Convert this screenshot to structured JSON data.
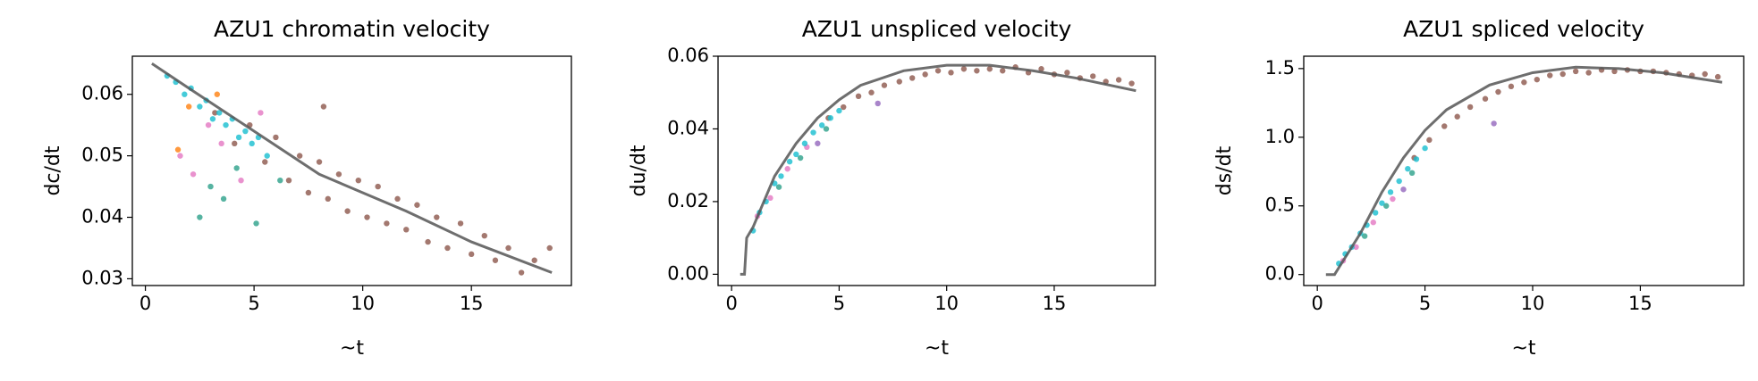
{
  "chart_data": [
    {
      "type": "scatter",
      "title": "AZU1 chromatin velocity",
      "xlabel": "~t",
      "ylabel": "dc/dt",
      "xlim": [
        -0.6,
        19.6
      ],
      "ylim": [
        0.0289,
        0.0662
      ],
      "xticks": [
        0,
        5,
        10,
        15
      ],
      "yticks": [
        0.03,
        0.04,
        0.05,
        0.06
      ],
      "series": [
        {
          "color": "#8c564b",
          "x": [
            3.2,
            4.1,
            4.8,
            5.5,
            6.0,
            6.6,
            7.1,
            7.5,
            8.0,
            8.2,
            8.4,
            8.9,
            9.3,
            9.8,
            10.2,
            10.7,
            11.1,
            11.6,
            12.0,
            12.5,
            13.0,
            13.4,
            13.9,
            14.5,
            15.0,
            15.6,
            16.1,
            16.7,
            17.3,
            17.9,
            18.6
          ],
          "y": [
            0.057,
            0.052,
            0.055,
            0.049,
            0.053,
            0.046,
            0.05,
            0.044,
            0.049,
            0.058,
            0.043,
            0.047,
            0.041,
            0.046,
            0.04,
            0.045,
            0.039,
            0.043,
            0.038,
            0.042,
            0.036,
            0.04,
            0.035,
            0.039,
            0.034,
            0.037,
            0.033,
            0.035,
            0.031,
            0.033,
            0.035
          ]
        },
        {
          "color": "#2ca089",
          "x": [
            2.5,
            3.0,
            3.6,
            4.2,
            5.1,
            6.2
          ],
          "y": [
            0.04,
            0.045,
            0.043,
            0.048,
            0.039,
            0.046
          ]
        },
        {
          "color": "#e377c2",
          "x": [
            1.6,
            2.2,
            2.9,
            3.5,
            4.4,
            5.3
          ],
          "y": [
            0.05,
            0.047,
            0.055,
            0.052,
            0.046,
            0.057
          ]
        },
        {
          "color": "#ff7f0e",
          "x": [
            1.5,
            2.0,
            3.3
          ],
          "y": [
            0.051,
            0.058,
            0.06
          ]
        },
        {
          "color": "#17becf",
          "x": [
            1.0,
            1.4,
            1.8,
            2.1,
            2.5,
            2.8,
            3.1,
            3.4,
            3.7,
            4.0,
            4.3,
            4.6,
            4.9,
            5.2,
            5.6
          ],
          "y": [
            0.063,
            0.062,
            0.06,
            0.061,
            0.058,
            0.059,
            0.056,
            0.057,
            0.055,
            0.056,
            0.053,
            0.054,
            0.052,
            0.053,
            0.05
          ]
        },
        {
          "type": "line",
          "color": "#555555",
          "x": [
            0.3,
            2,
            5,
            8,
            10,
            12,
            15,
            18.7
          ],
          "y": [
            0.065,
            0.061,
            0.054,
            0.047,
            0.044,
            0.041,
            0.036,
            0.031
          ]
        }
      ]
    },
    {
      "type": "scatter",
      "title": "AZU1 unspliced velocity",
      "xlabel": "~t",
      "ylabel": "du/dt",
      "xlim": [
        -0.63,
        19.7
      ],
      "ylim": [
        -0.0031,
        0.06
      ],
      "xticks": [
        0,
        5,
        10,
        15
      ],
      "yticks": [
        {
          "value": 0,
          "label": "0.00"
        },
        0.02,
        0.04,
        0.06
      ],
      "series": [
        {
          "color": "#8c564b",
          "x": [
            4.5,
            5.2,
            5.9,
            6.5,
            7.1,
            7.8,
            8.4,
            9.0,
            9.6,
            10.2,
            10.8,
            11.4,
            12.0,
            12.6,
            13.2,
            13.8,
            14.4,
            15.0,
            15.6,
            16.2,
            16.8,
            17.4,
            18.0,
            18.6
          ],
          "y": [
            0.043,
            0.046,
            0.049,
            0.05,
            0.052,
            0.053,
            0.054,
            0.055,
            0.056,
            0.0555,
            0.0565,
            0.056,
            0.0565,
            0.056,
            0.057,
            0.0555,
            0.0565,
            0.055,
            0.0555,
            0.054,
            0.0545,
            0.053,
            0.0535,
            0.0525
          ]
        },
        {
          "color": "#e377c2",
          "x": [
            1.2,
            1.8,
            2.6,
            3.5
          ],
          "y": [
            0.016,
            0.021,
            0.029,
            0.035
          ]
        },
        {
          "color": "#2ca089",
          "x": [
            2.2,
            3.2,
            4.4
          ],
          "y": [
            0.024,
            0.032,
            0.04
          ]
        },
        {
          "color": "#9467bd",
          "x": [
            4.0,
            6.8
          ],
          "y": [
            0.036,
            0.047
          ]
        },
        {
          "color": "#17becf",
          "x": [
            1.0,
            1.3,
            1.6,
            2.0,
            2.3,
            2.7,
            3.0,
            3.4,
            3.8,
            4.2,
            4.6,
            5.0
          ],
          "y": [
            0.012,
            0.017,
            0.02,
            0.025,
            0.027,
            0.031,
            0.033,
            0.036,
            0.039,
            0.041,
            0.043,
            0.045
          ]
        },
        {
          "type": "line",
          "color": "#555555",
          "x": [
            0.4,
            0.6,
            0.7,
            1,
            2,
            3,
            4,
            5,
            6,
            8,
            10,
            12,
            14,
            16,
            18.8
          ],
          "y": [
            0,
            0,
            0.01,
            0.013,
            0.027,
            0.036,
            0.043,
            0.048,
            0.052,
            0.056,
            0.0575,
            0.0575,
            0.056,
            0.054,
            0.0505
          ]
        }
      ]
    },
    {
      "type": "scatter",
      "title": "AZU1 spliced velocity",
      "xlabel": "~t",
      "ylabel": "ds/dt",
      "xlim": [
        -0.63,
        19.8
      ],
      "ylim": [
        -0.08,
        1.59
      ],
      "xticks": [
        0,
        5,
        10,
        15
      ],
      "yticks": [
        {
          "value": 0,
          "label": "0.0"
        },
        0.5,
        {
          "value": 1,
          "label": "1.0"
        },
        1.5
      ],
      "series": [
        {
          "color": "#8c564b",
          "x": [
            4.5,
            5.2,
            5.9,
            6.5,
            7.1,
            7.8,
            8.4,
            9.0,
            9.6,
            10.2,
            10.8,
            11.4,
            12.0,
            12.6,
            13.2,
            13.8,
            14.4,
            15.0,
            15.6,
            16.2,
            16.8,
            17.4,
            18.0,
            18.6
          ],
          "y": [
            0.85,
            0.98,
            1.08,
            1.15,
            1.22,
            1.28,
            1.33,
            1.37,
            1.4,
            1.42,
            1.45,
            1.46,
            1.48,
            1.47,
            1.49,
            1.48,
            1.49,
            1.48,
            1.48,
            1.47,
            1.46,
            1.45,
            1.46,
            1.44
          ]
        },
        {
          "color": "#e377c2",
          "x": [
            1.2,
            1.8,
            2.6,
            3.5
          ],
          "y": [
            0.1,
            0.2,
            0.38,
            0.55
          ]
        },
        {
          "color": "#2ca089",
          "x": [
            2.2,
            3.2,
            4.4
          ],
          "y": [
            0.28,
            0.5,
            0.74
          ]
        },
        {
          "color": "#9467bd",
          "x": [
            4.0,
            8.2
          ],
          "y": [
            0.62,
            1.1
          ]
        },
        {
          "color": "#17becf",
          "x": [
            1.0,
            1.3,
            1.6,
            2.0,
            2.3,
            2.7,
            3.0,
            3.4,
            3.8,
            4.2,
            4.6,
            5.0
          ],
          "y": [
            0.08,
            0.15,
            0.2,
            0.3,
            0.36,
            0.45,
            0.52,
            0.6,
            0.68,
            0.77,
            0.84,
            0.92
          ]
        },
        {
          "type": "line",
          "color": "#555555",
          "x": [
            0.4,
            0.8,
            1,
            2,
            3,
            4,
            5,
            6,
            8,
            10,
            12,
            14,
            16,
            18.8
          ],
          "y": [
            0,
            0,
            0.05,
            0.3,
            0.6,
            0.85,
            1.05,
            1.2,
            1.38,
            1.47,
            1.51,
            1.5,
            1.47,
            1.4
          ]
        }
      ]
    }
  ]
}
